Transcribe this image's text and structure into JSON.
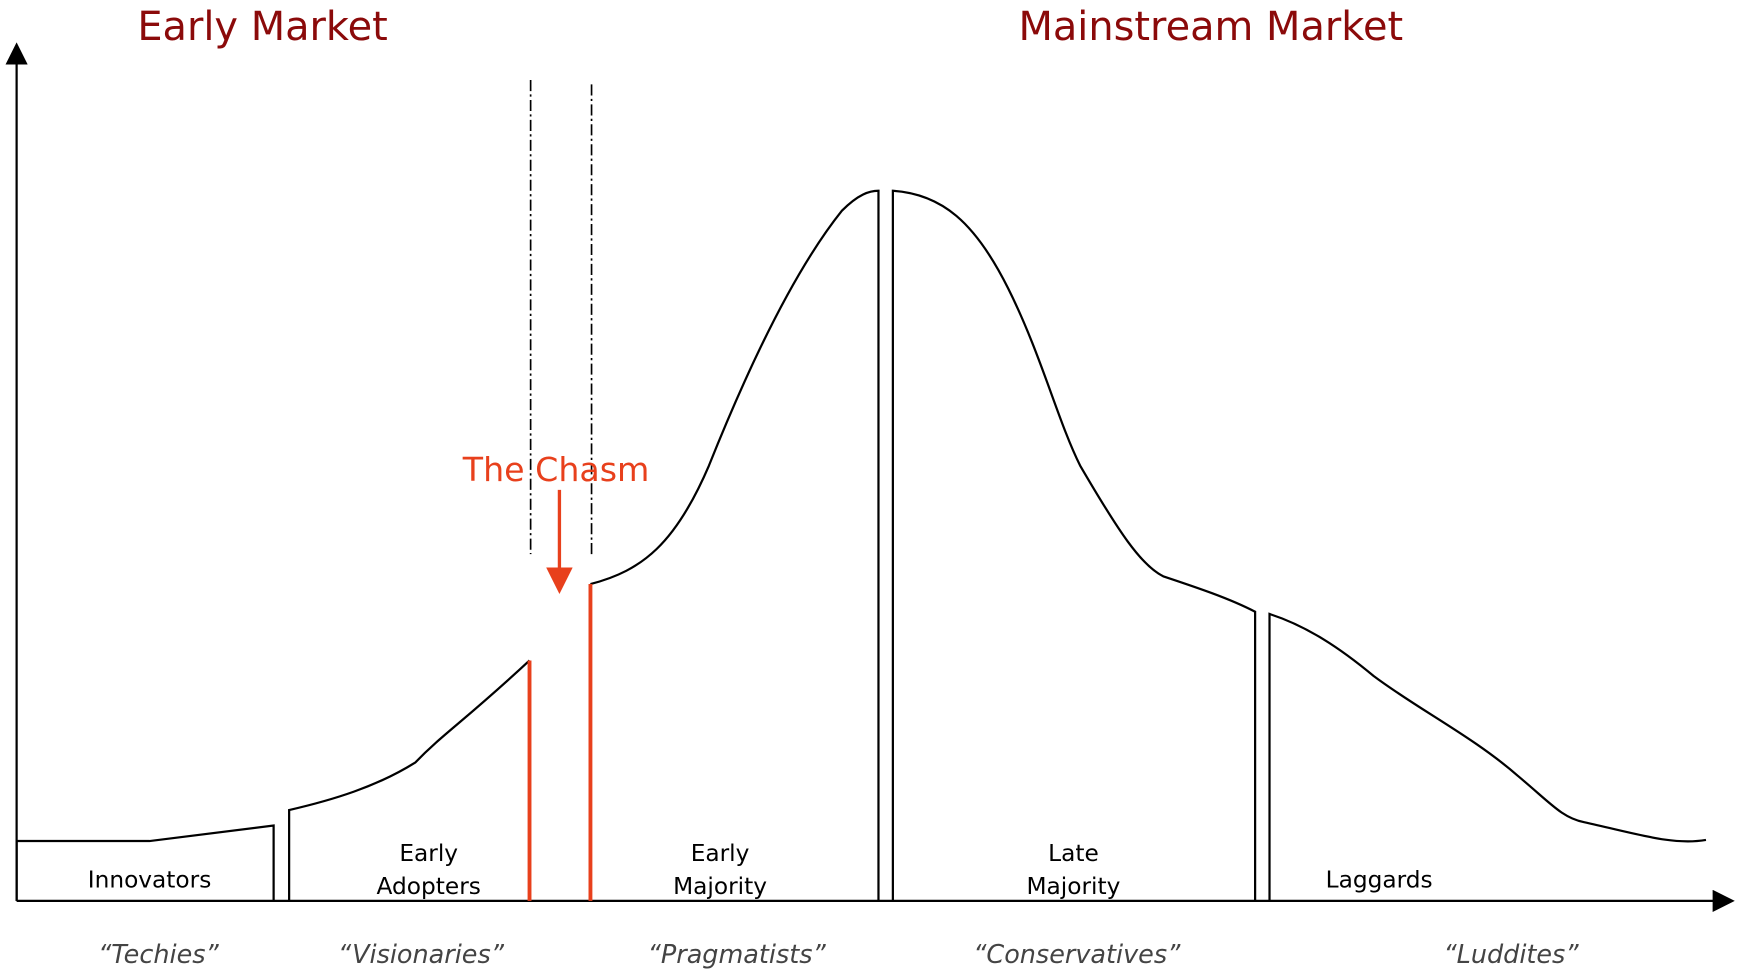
{
  "header": {
    "left_title": "Early Market",
    "right_title": "Mainstream Market"
  },
  "chasm_label": "The Chasm",
  "segments": [
    {
      "label": [
        "Innovators"
      ],
      "nickname": "“Techies”"
    },
    {
      "label": [
        "Early",
        "Adopters"
      ],
      "nickname": "“Visionaries”"
    },
    {
      "label": [
        "Early",
        "Majority"
      ],
      "nickname": "“Pragmatists”"
    },
    {
      "label": [
        "Late",
        "Majority"
      ],
      "nickname": "“Conservatives”"
    },
    {
      "label": [
        "Laggards"
      ],
      "nickname": "“Luddites”"
    }
  ]
}
